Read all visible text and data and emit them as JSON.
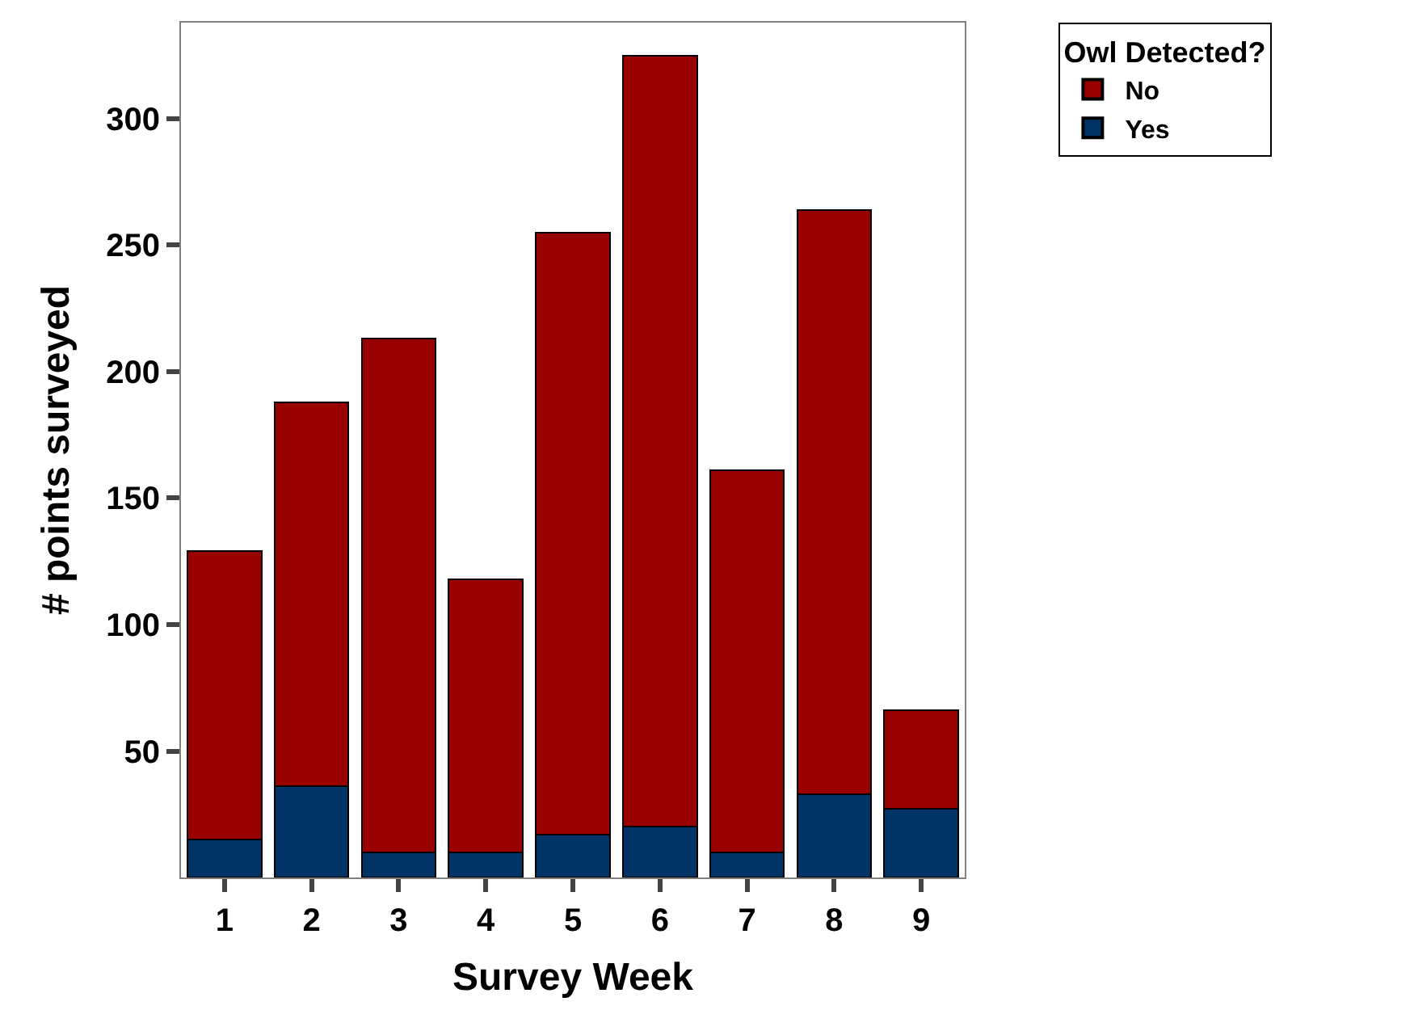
{
  "chart_data": {
    "type": "bar",
    "stacked": true,
    "xlabel": "Survey Week",
    "ylabel": "# points surveyed",
    "legend_title": "Owl Detected?",
    "legend": "top right",
    "categories": [
      "1",
      "2",
      "3",
      "4",
      "5",
      "6",
      "7",
      "8",
      "9"
    ],
    "series": [
      {
        "name": "Yes",
        "color": "#003366",
        "values": [
          15,
          36,
          10,
          10,
          17,
          20,
          10,
          33,
          27
        ]
      },
      {
        "name": "No",
        "color": "#990000",
        "values": [
          114,
          152,
          203,
          108,
          238,
          305,
          151,
          231,
          39
        ]
      }
    ],
    "ylim": [
      0,
      338
    ],
    "yticks": [
      50,
      100,
      150,
      200,
      250,
      300
    ]
  }
}
